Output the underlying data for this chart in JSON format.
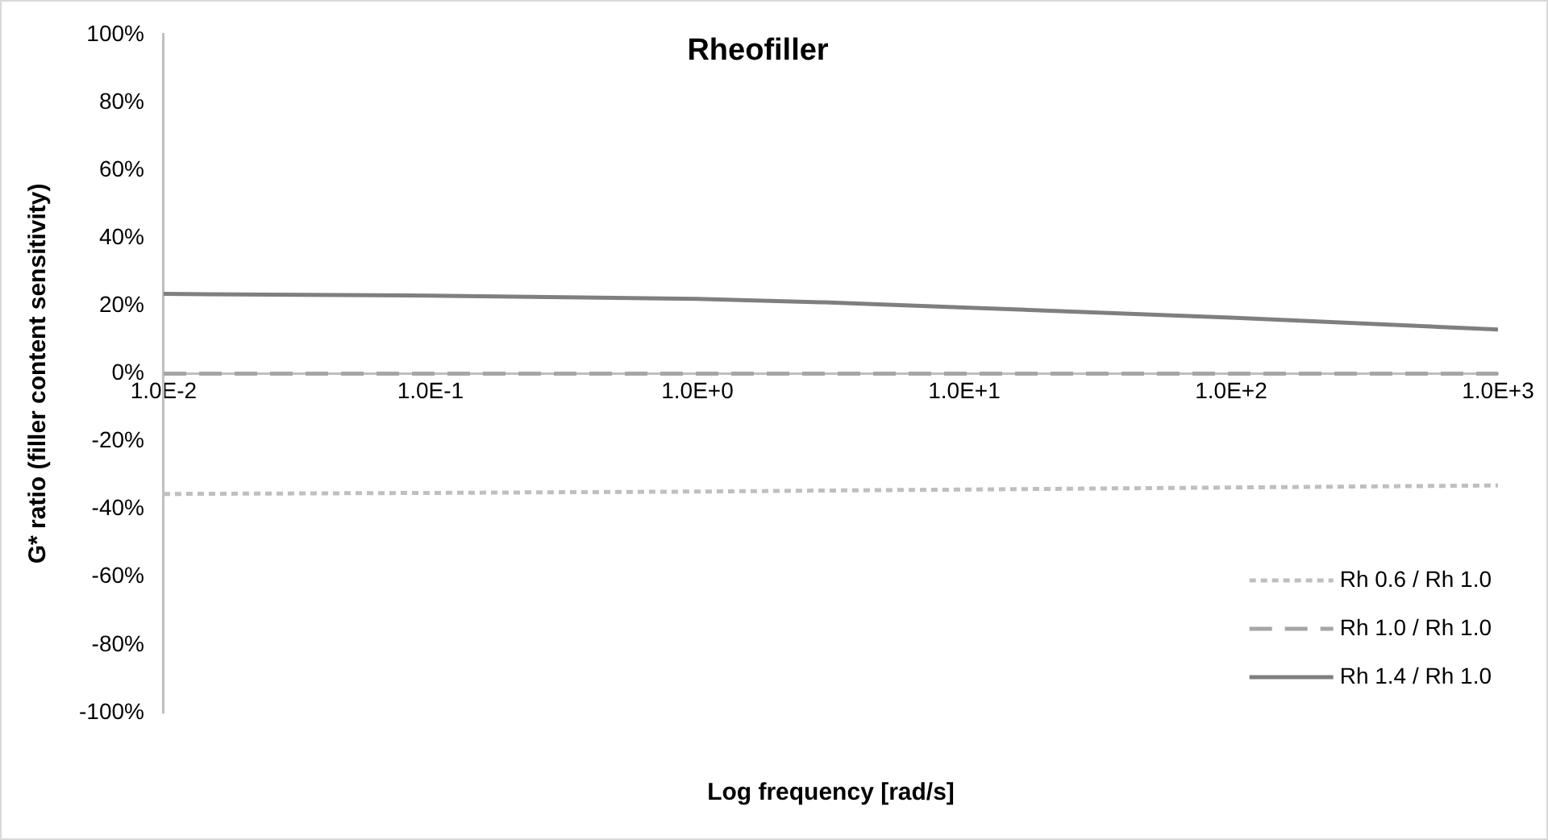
{
  "chart_data": {
    "type": "line",
    "title": "Rheofiller",
    "xlabel": "Log frequency [rad/s]",
    "ylabel": "G* ratio (filler content sensitivity)",
    "log": "x",
    "xlim": [
      0.01,
      1000
    ],
    "xticks": [
      {
        "value": 0.01,
        "label": "1.0E-2"
      },
      {
        "value": 0.1,
        "label": "1.0E-1"
      },
      {
        "value": 1,
        "label": "1.0E+0"
      },
      {
        "value": 10,
        "label": "1.0E+1"
      },
      {
        "value": 100,
        "label": "1.0E+2"
      },
      {
        "value": 1000,
        "label": "1.0E+3"
      }
    ],
    "ylim": [
      -100,
      100
    ],
    "yticks": [
      {
        "value": -100,
        "label": "-100%"
      },
      {
        "value": -80,
        "label": "-80%"
      },
      {
        "value": -60,
        "label": "-60%"
      },
      {
        "value": -40,
        "label": "-40%"
      },
      {
        "value": -20,
        "label": "-20%"
      },
      {
        "value": 0,
        "label": "0%"
      },
      {
        "value": 20,
        "label": "20%"
      },
      {
        "value": 40,
        "label": "40%"
      },
      {
        "value": 60,
        "label": "60%"
      },
      {
        "value": 80,
        "label": "80%"
      },
      {
        "value": 100,
        "label": "100%"
      }
    ],
    "x": [
      0.01,
      0.1,
      1,
      3,
      10,
      100,
      1000
    ],
    "series": [
      {
        "name": "Rh 0.6 / Rh 1.0",
        "color": "#bfbfbf",
        "line_style": "dotted",
        "values": [
          -35.5,
          -35.2,
          -34.8,
          -34.5,
          -34.2,
          -33.6,
          -33
        ]
      },
      {
        "name": "Rh 1.0 / Rh 1.0",
        "color": "#a6a6a6",
        "line_style": "dashed",
        "values": [
          0,
          0,
          0,
          0,
          0,
          0,
          0
        ]
      },
      {
        "name": "Rh 1.4 / Rh 1.0",
        "color": "#7f7f7f",
        "line_style": "solid",
        "values": [
          23.5,
          23,
          22,
          21,
          19.5,
          16.5,
          13
        ]
      }
    ],
    "grid": false,
    "legend": "bottom right",
    "marker": "none"
  }
}
